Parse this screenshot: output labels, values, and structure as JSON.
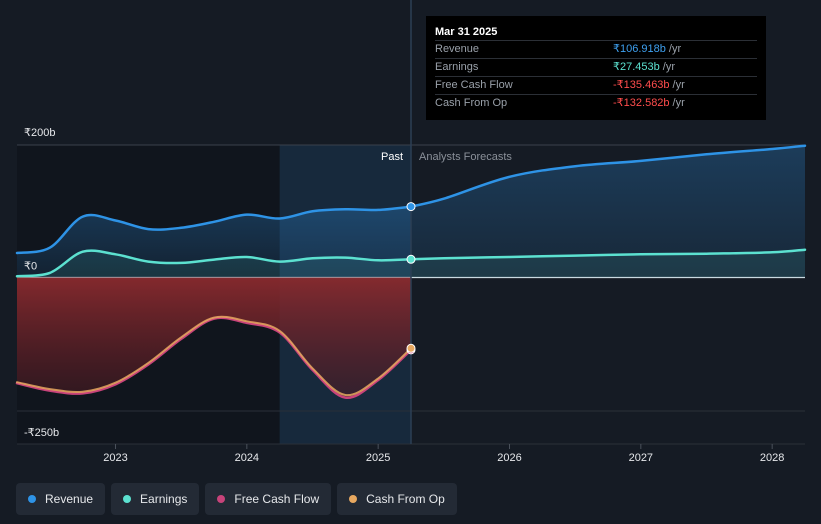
{
  "colors": {
    "background": "#151b24",
    "revenue": "#2e93e6",
    "earnings": "#5ce1d0",
    "free_cash_flow": "#c8437a",
    "cash_from_op": "#e7a860",
    "negative_value": "#ff4d4d"
  },
  "tooltip": {
    "date": "Mar 31 2025",
    "rows": [
      {
        "label": "Revenue",
        "value": "₹106.918b",
        "unit": "/yr",
        "color": "#3ea0f0"
      },
      {
        "label": "Earnings",
        "value": "₹27.453b",
        "unit": "/yr",
        "color": "#5ce1d0"
      },
      {
        "label": "Free Cash Flow",
        "value": "-₹135.463b",
        "unit": "/yr",
        "color": "#ff4d4d"
      },
      {
        "label": "Cash From Op",
        "value": "-₹132.582b",
        "unit": "/yr",
        "color": "#ff4d4d"
      }
    ]
  },
  "regions": {
    "past": "Past",
    "forecast": "Analysts Forecasts"
  },
  "legend": [
    {
      "label": "Revenue",
      "color": "#2e93e6",
      "icon": "circle-icon"
    },
    {
      "label": "Earnings",
      "color": "#5ce1d0",
      "icon": "circle-icon"
    },
    {
      "label": "Free Cash Flow",
      "color": "#c8437a",
      "icon": "circle-icon"
    },
    {
      "label": "Cash From Op",
      "color": "#e7a860",
      "icon": "circle-icon"
    }
  ],
  "chart_data": {
    "type": "area",
    "title": "",
    "xlabel": "",
    "ylabel": "",
    "x_ticks": [
      "2023",
      "2024",
      "2025",
      "2026",
      "2027",
      "2028"
    ],
    "y_ticks": [
      {
        "label": "₹200b",
        "value": 200
      },
      {
        "label": "₹0",
        "value": 0
      },
      {
        "label": "-₹250b",
        "value": -250
      }
    ],
    "ylim": [
      -250,
      200
    ],
    "xlim": [
      2022.25,
      2028.25
    ],
    "divider_x": 2025.25,
    "highlight_start_x": 2024.25,
    "grid": "horizontal",
    "unit": "₹ billions",
    "series": [
      {
        "name": "Revenue",
        "key": "revenue",
        "fill": true,
        "x": [
          2022.25,
          2022.5,
          2022.75,
          2023.0,
          2023.25,
          2023.5,
          2023.75,
          2024.0,
          2024.25,
          2024.5,
          2024.75,
          2025.0,
          2025.25
        ],
        "values": [
          37,
          45,
          92,
          86,
          73,
          75,
          84,
          95,
          89,
          100,
          103,
          102,
          107
        ]
      },
      {
        "name": "Revenue",
        "key": "revenue",
        "fill": true,
        "forecast": true,
        "x": [
          2025.25,
          2025.5,
          2026.0,
          2026.5,
          2027.0,
          2027.5,
          2028.0,
          2028.25
        ],
        "values": [
          107,
          119,
          152,
          168,
          176,
          186,
          194,
          199
        ]
      },
      {
        "name": "Earnings",
        "key": "earnings",
        "fill": true,
        "x": [
          2022.25,
          2022.5,
          2022.75,
          2023.0,
          2023.25,
          2023.5,
          2023.75,
          2024.0,
          2024.25,
          2024.5,
          2024.75,
          2025.0,
          2025.25
        ],
        "values": [
          2,
          7,
          39,
          35,
          24,
          22,
          27,
          31,
          24,
          29,
          30,
          26,
          27.5
        ]
      },
      {
        "name": "Earnings",
        "key": "earnings",
        "fill": true,
        "forecast": true,
        "x": [
          2025.25,
          2025.5,
          2026.0,
          2026.5,
          2027.0,
          2027.5,
          2028.0,
          2028.25
        ],
        "values": [
          27.5,
          29,
          31,
          33,
          35,
          36,
          38,
          42
        ]
      },
      {
        "name": "Free Cash Flow",
        "key": "free_cash_flow",
        "fill": true,
        "x": [
          2022.25,
          2022.5,
          2022.75,
          2023.0,
          2023.25,
          2023.5,
          2023.75,
          2024.0,
          2024.25,
          2024.5,
          2024.75,
          2025.0,
          2025.25
        ],
        "values": [
          -198,
          -212,
          -217,
          -200,
          -163,
          -115,
          -77,
          -85,
          -103,
          -173,
          -225,
          -192,
          -135.5
        ]
      },
      {
        "name": "Cash From Op",
        "key": "cash_from_op",
        "fill": false,
        "x": [
          2022.25,
          2022.5,
          2022.75,
          2023.0,
          2023.25,
          2023.5,
          2023.75,
          2024.0,
          2024.25,
          2024.5,
          2024.75,
          2025.0,
          2025.25
        ],
        "values": [
          -196,
          -209,
          -214,
          -197,
          -160,
          -112,
          -75,
          -82,
          -100,
          -170,
          -220,
          -189,
          -132.6
        ]
      }
    ],
    "markers_x": 2025.25
  }
}
